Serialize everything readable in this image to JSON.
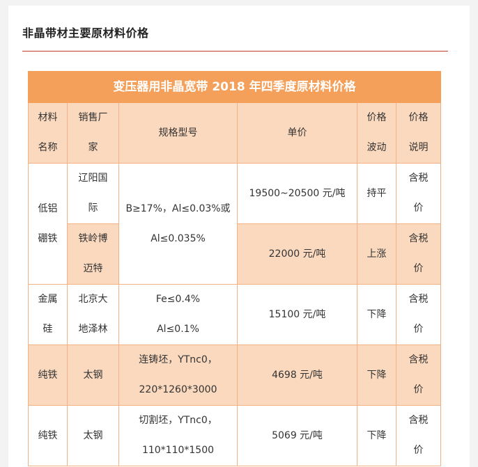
{
  "section_title": "非晶带材主要原材料价格",
  "table": {
    "banner": "变压器用非晶宽带 2018 年四季度原材料价格",
    "headers": {
      "material_1": "材料",
      "material_2": "名称",
      "seller_1": "销售厂",
      "seller_2": "家",
      "spec": "规格型号",
      "price": "单价",
      "trend_1": "价格",
      "trend_2": "波动",
      "note_1": "价格",
      "note_2": "说明"
    },
    "rows": {
      "boron_material_1": "低铝",
      "boron_material_2": "硼铁",
      "boron_spec_1": "B≥17%，Al≤0.03%或",
      "boron_spec_2": "Al≤0.035%",
      "liaoyang_seller_1": "辽阳国",
      "liaoyang_seller_2": "际",
      "liaoyang_price": "19500~20500 元/吨",
      "liaoyang_trend": "持平",
      "liaoyang_note_1": "含税",
      "liaoyang_note_2": "价",
      "tieling_seller_1": "铁岭博",
      "tieling_seller_2": "迈特",
      "tieling_price": "22000 元/吨",
      "tieling_trend": "上涨",
      "tieling_note_1": "含税",
      "tieling_note_2": "价",
      "silicon_material_1": "金属",
      "silicon_material_2": "硅",
      "silicon_seller_1": "北京大",
      "silicon_seller_2": "地泽林",
      "silicon_spec_1": "Fe≤0.4%",
      "silicon_spec_2": "Al≤0.1%",
      "silicon_price": "15100 元/吨",
      "silicon_trend": "下降",
      "silicon_note_1": "含税",
      "silicon_note_2": "价",
      "iron1_material": "纯铁",
      "iron1_seller": "太钢",
      "iron1_spec_1": "连铸坯，YTnc0，",
      "iron1_spec_2": "220*1260*3000",
      "iron1_price": "4698 元/吨",
      "iron1_trend": "下降",
      "iron1_note_1": "含税",
      "iron1_note_2": "价",
      "iron2_material": "纯铁",
      "iron2_seller": "太钢",
      "iron2_spec_1": "切割坯，YTnc0，",
      "iron2_spec_2": "110*110*1500",
      "iron2_price": "5069 元/吨",
      "iron2_trend": "下降",
      "iron2_note_1": "含税",
      "iron2_note_2": "价"
    }
  }
}
